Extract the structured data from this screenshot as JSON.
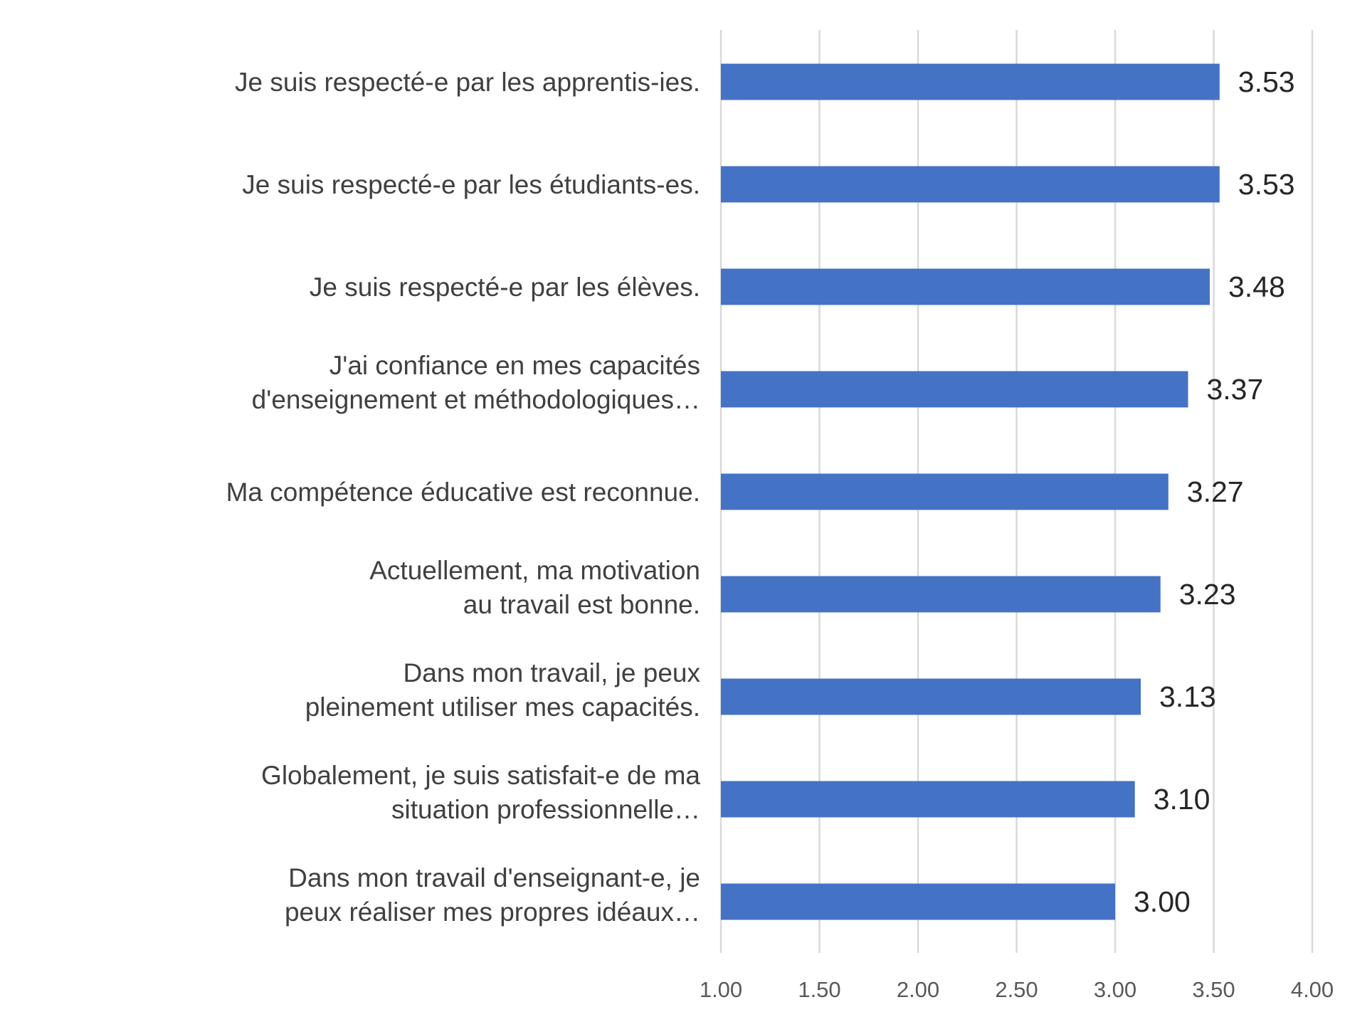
{
  "chart_data": {
    "type": "bar",
    "orientation": "horizontal",
    "categories": [
      [
        "Je suis respecté-e par les apprentis-ies."
      ],
      [
        "Je suis respecté-e par les étudiants-es."
      ],
      [
        "Je suis respecté-e par les élèves."
      ],
      [
        "J'ai confiance en mes capacités",
        "d'enseignement et méthodologiques…"
      ],
      [
        "Ma compétence éducative est reconnue."
      ],
      [
        "Actuellement, ma motivation",
        "au travail est bonne."
      ],
      [
        "Dans mon travail, je peux",
        "pleinement utiliser mes capacités."
      ],
      [
        "Globalement, je suis satisfait-e de ma",
        "situation professionnelle…"
      ],
      [
        "Dans mon travail d'enseignant-e, je",
        "peux réaliser mes propres idéaux…"
      ]
    ],
    "values": [
      3.53,
      3.53,
      3.48,
      3.37,
      3.27,
      3.23,
      3.13,
      3.1,
      3.0
    ],
    "data_labels": [
      "3.53",
      "3.53",
      "3.48",
      "3.37",
      "3.27",
      "3.23",
      "3.13",
      "3.10",
      "3.00"
    ],
    "xlim": [
      1.0,
      4.0
    ],
    "xticks": [
      "1.00",
      "1.50",
      "2.00",
      "2.50",
      "3.00",
      "3.50",
      "4.00"
    ],
    "grid": "vertical",
    "title": "",
    "xlabel": "",
    "ylabel": "",
    "colors": {
      "bar": "#4472C4",
      "grid": "#D9D9D9"
    }
  }
}
